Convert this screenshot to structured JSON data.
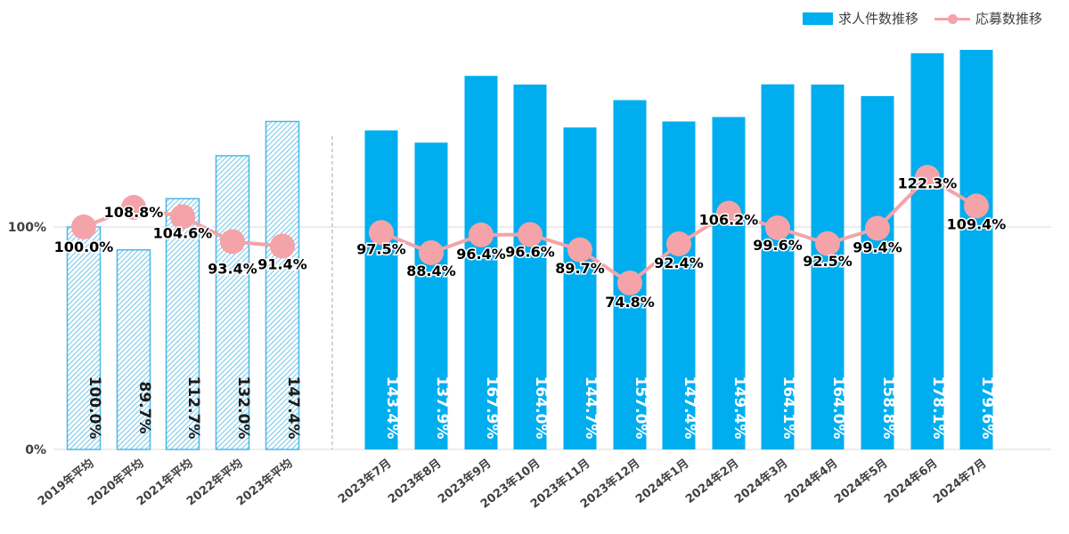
{
  "colors": {
    "bar": "#00aeef",
    "bar_hatch": "#4ab8e6",
    "line": "#f4a3a8",
    "axis_text": "#404040",
    "grid": "#d9d9d9",
    "bar_label_solid": "#ffffff",
    "bar_label_hatched": "#1a1a1a"
  },
  "legend": {
    "bar_label": "求人件数推移",
    "line_label": "応募数推移"
  },
  "chart_data": {
    "type": "bar",
    "categories": [
      "2019年平均",
      "2020年平均",
      "2021年平均",
      "2022年平均",
      "2023年平均",
      "2023年7月",
      "2023年8月",
      "2023年9月",
      "2023年10月",
      "2023年11月",
      "2023年12月",
      "2024年1月",
      "2024年2月",
      "2024年3月",
      "2024年4月",
      "2024年5月",
      "2024年6月",
      "2024年7月"
    ],
    "y_ticks": [
      "0%",
      "100%"
    ],
    "ylim": [
      0,
      200
    ],
    "grid": true,
    "legend_position": "top-right",
    "series": [
      {
        "name": "求人件数推移",
        "kind": "bar",
        "values": [
          100.0,
          89.7,
          112.7,
          132.0,
          147.4,
          143.4,
          137.9,
          167.9,
          164.0,
          144.7,
          157.0,
          147.4,
          149.4,
          164.1,
          164.0,
          158.8,
          178.1,
          179.6
        ],
        "labels": [
          "100.0%",
          "89.7%",
          "112.7%",
          "132.0%",
          "147.4%",
          "143.4%",
          "137.9%",
          "167.9%",
          "164.0%",
          "144.7%",
          "157.0%",
          "147.4%",
          "149.4%",
          "164.1%",
          "164.0%",
          "158.8%",
          "178.1%",
          "179.6%"
        ],
        "hatched_count": 5
      },
      {
        "name": "応募数推移",
        "kind": "line",
        "values": [
          100.0,
          108.8,
          104.6,
          93.4,
          91.4,
          97.5,
          88.4,
          96.4,
          96.6,
          89.7,
          74.8,
          92.4,
          106.2,
          99.6,
          92.5,
          99.4,
          122.3,
          109.4
        ],
        "labels": [
          "100.0%",
          "108.8%",
          "104.6%",
          "93.4%",
          "91.4%",
          "97.5%",
          "88.4%",
          "96.4%",
          "96.6%",
          "89.7%",
          "74.8%",
          "92.4%",
          "106.2%",
          "99.6%",
          "92.5%",
          "99.4%",
          "122.3%",
          "109.4%"
        ]
      }
    ]
  }
}
